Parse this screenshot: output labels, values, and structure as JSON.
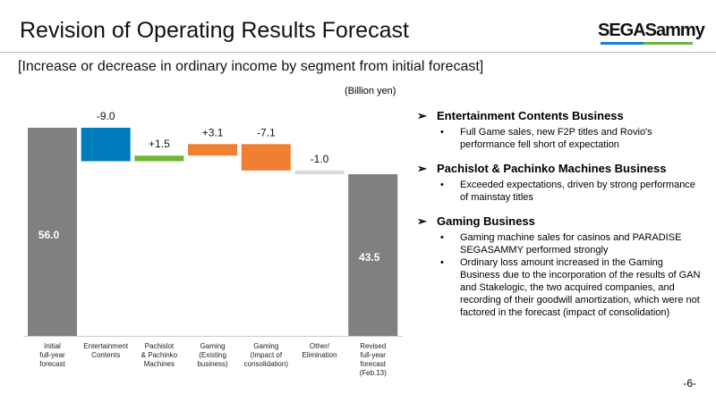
{
  "header": {
    "title": "Revision of Operating Results Forecast",
    "logo": "SEGASammy",
    "subtitle": "[Increase or decrease in ordinary income by segment from initial forecast]"
  },
  "chart_data": {
    "type": "waterfall",
    "unit_label": "(Billion yen)",
    "categories": [
      "Initial full-year forecast",
      "Entertainment Contents",
      "Pachislot & Pachinko Machines",
      "Gaming (Existing business)",
      "Gaming (Impact of consolidation)",
      "Other/ Elimination",
      "Revised full-year forecast (Feb.13)"
    ],
    "category_lines": [
      [
        "Initial",
        "full-year",
        "forecast"
      ],
      [
        "Entertainment",
        "Contents"
      ],
      [
        "Pachislot",
        "& Pachinko",
        "Machines"
      ],
      [
        "Gaming",
        "(Existing",
        "business)"
      ],
      [
        "Gaming",
        "(Impact of",
        "consolidation)"
      ],
      [
        "Other/",
        "Elimination"
      ],
      [
        "Revised",
        "full-year",
        "forecast",
        "(Feb.13)"
      ]
    ],
    "kinds": [
      "total",
      "delta",
      "delta",
      "delta",
      "delta",
      "delta",
      "total"
    ],
    "values": [
      56.0,
      -9.0,
      1.5,
      3.1,
      -7.1,
      -1.0,
      43.5
    ],
    "labels": [
      "56.0",
      "-9.0",
      "+1.5",
      "+3.1",
      "-7.1",
      "-1.0",
      "43.5"
    ],
    "colors": [
      "#808080",
      "#007bbb",
      "#70b830",
      "#ee7f33",
      "#ee7f33",
      "#d9d9d9",
      "#808080"
    ],
    "ylim": [
      0,
      56
    ]
  },
  "notes": [
    {
      "heading": "Entertainment Contents Business",
      "bullets": [
        "Full Game sales, new F2P titles and Rovio's performance fell short of expectation"
      ]
    },
    {
      "heading": "Pachislot & Pachinko Machines Business",
      "bullets": [
        "Exceeded expectations, driven by strong performance of mainstay titles"
      ]
    },
    {
      "heading": "Gaming Business",
      "bullets": [
        "Gaming machine sales for casinos and PARADISE SEGASAMMY performed strongly",
        "Ordinary loss amount increased in the Gaming Business due to the incorporation of the results of GAN and Stakelogic, the two acquired companies, and recording of their goodwill amortization, which were not factored in the forecast (impact of consolidation)"
      ]
    }
  ],
  "page": "-6-"
}
